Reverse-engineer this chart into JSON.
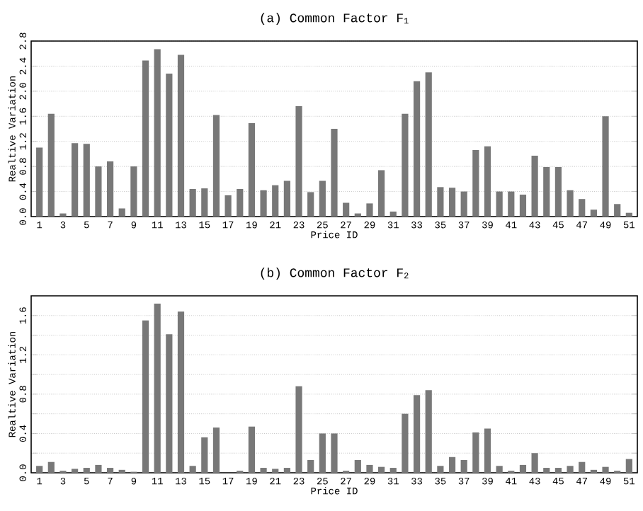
{
  "chart_data": [
    {
      "type": "bar",
      "title": "(a) Common Factor F$_{1}$",
      "xlabel": "Price ID",
      "ylabel": "Realtive Variation",
      "color": "#787878",
      "grid": "y",
      "categories": [
        "1",
        null,
        "3",
        null,
        "5",
        null,
        "7",
        null,
        "9",
        null,
        "11",
        null,
        "13",
        null,
        "15",
        null,
        "17",
        null,
        "19",
        null,
        "21",
        null,
        "23",
        null,
        "25",
        null,
        "27",
        null,
        "29",
        null,
        "31",
        null,
        "33",
        null,
        "35",
        null,
        "37",
        null,
        "39",
        null,
        "41",
        null,
        "43",
        null,
        "45",
        null,
        "47",
        null,
        "49",
        null,
        "51"
      ],
      "values": [
        1.1,
        1.64,
        0.05,
        1.17,
        1.16,
        0.8,
        0.88,
        0.13,
        0.8,
        2.49,
        2.67,
        2.28,
        2.58,
        0.44,
        0.45,
        1.62,
        0.34,
        0.44,
        1.49,
        0.42,
        0.5,
        0.57,
        1.76,
        0.39,
        0.57,
        1.4,
        0.22,
        0.05,
        0.21,
        0.74,
        0.08,
        1.64,
        2.16,
        2.3,
        0.47,
        0.46,
        0.4,
        1.06,
        1.12,
        0.4,
        0.4,
        0.35,
        0.97,
        0.79,
        0.79,
        0.42,
        0.28,
        0.11,
        1.6,
        0.2,
        0.06
      ],
      "ylim": [
        0,
        2.8
      ],
      "yticks": [
        {
          "value": 0,
          "label": "0.0"
        },
        0.4,
        0.8,
        1.2,
        1.6,
        {
          "value": 2,
          "label": "2.0"
        },
        2.4,
        2.8
      ]
    },
    {
      "type": "bar",
      "title": "(b) Common Factor F$_{2}$",
      "xlabel": "Price ID",
      "ylabel": "Realtive Variation",
      "color": "#787878",
      "grid": "y",
      "categories": [
        "1",
        null,
        "3",
        null,
        "5",
        null,
        "7",
        null,
        "9",
        null,
        "11",
        null,
        "13",
        null,
        "15",
        null,
        "17",
        null,
        "19",
        null,
        "21",
        null,
        "23",
        null,
        "25",
        null,
        "27",
        null,
        "29",
        null,
        "31",
        null,
        "33",
        null,
        "35",
        null,
        "37",
        null,
        "39",
        null,
        "41",
        null,
        "43",
        null,
        "45",
        null,
        "47",
        null,
        "49",
        null,
        "51"
      ],
      "values": [
        0.07,
        0.11,
        0.02,
        0.04,
        0.05,
        0.08,
        0.05,
        0.03,
        0.01,
        1.55,
        1.72,
        1.41,
        1.64,
        0.07,
        0.36,
        0.46,
        0.0,
        0.02,
        0.47,
        0.05,
        0.04,
        0.05,
        0.88,
        0.13,
        0.4,
        0.4,
        0.02,
        0.13,
        0.08,
        0.06,
        0.05,
        0.6,
        0.79,
        0.84,
        0.07,
        0.16,
        0.13,
        0.41,
        0.45,
        0.07,
        0.02,
        0.08,
        0.2,
        0.05,
        0.05,
        0.07,
        0.11,
        0.03,
        0.06,
        0.02,
        0.14
      ],
      "ylim": [
        0,
        1.8
      ],
      "yticks": [
        {
          "value": 0,
          "label": "0.0"
        },
        {
          "value": 0.2,
          "label": null
        },
        0.4,
        {
          "value": 0.6,
          "label": null
        },
        0.8,
        {
          "value": 1,
          "label": null
        },
        1.2,
        {
          "value": 1.4,
          "label": null
        },
        1.6
      ]
    }
  ]
}
